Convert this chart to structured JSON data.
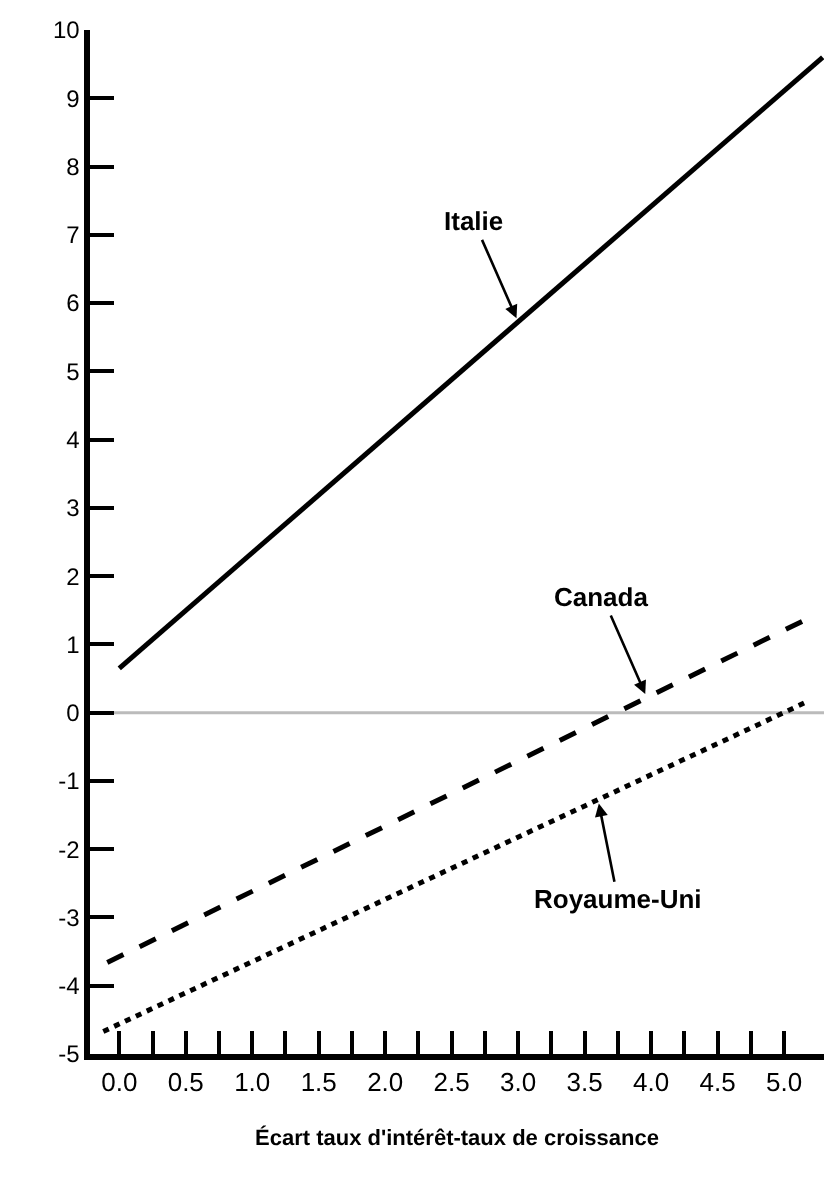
{
  "chart_data": {
    "type": "line",
    "xlabel": "Écart taux d'intérêt-taux de croissance",
    "series": [
      {
        "name": "Italie",
        "color": "#000000",
        "x": [
          0.0,
          5.29
        ],
        "values": [
          0.65,
          9.6
        ],
        "line_style": "solid"
      },
      {
        "name": "Canada",
        "color": "#000000",
        "x": [
          -0.09,
          5.18
        ],
        "values": [
          -3.66,
          1.38
        ],
        "line_style": "dashed"
      },
      {
        "name": "Royaume-Uni",
        "color": "#000000",
        "x": [
          -0.12,
          5.15
        ],
        "values": [
          -4.67,
          0.14
        ],
        "line_style": "dotted"
      }
    ],
    "ref_lines": [
      {
        "axis": "y",
        "value": 0,
        "color": "#bbbbbb"
      }
    ],
    "xlim": [
      -0.22,
      5.3
    ],
    "ylim": [
      -5,
      10
    ],
    "xticks": [
      {
        "value": 0.0,
        "label": "0.0"
      },
      {
        "value": 0.25,
        "label": null
      },
      {
        "value": 0.5,
        "label": "0.5"
      },
      {
        "value": 0.75,
        "label": null
      },
      {
        "value": 1.0,
        "label": "1.0"
      },
      {
        "value": 1.25,
        "label": null
      },
      {
        "value": 1.5,
        "label": "1.5"
      },
      {
        "value": 1.75,
        "label": null
      },
      {
        "value": 2.0,
        "label": "2.0"
      },
      {
        "value": 2.25,
        "label": null
      },
      {
        "value": 2.5,
        "label": "2.5"
      },
      {
        "value": 2.75,
        "label": null
      },
      {
        "value": 3.0,
        "label": "3.0"
      },
      {
        "value": 3.25,
        "label": null
      },
      {
        "value": 3.5,
        "label": "3.5"
      },
      {
        "value": 3.75,
        "label": null
      },
      {
        "value": 4.0,
        "label": "4.0"
      },
      {
        "value": 4.25,
        "label": null
      },
      {
        "value": 4.5,
        "label": "4.5"
      },
      {
        "value": 4.75,
        "label": null
      },
      {
        "value": 5.0,
        "label": "5.0"
      }
    ],
    "yticks": [
      -5,
      -4,
      -3,
      -2,
      -1,
      0,
      1,
      2,
      3,
      4,
      5,
      6,
      7,
      8,
      9,
      10
    ],
    "grid": false,
    "legend": false,
    "marker": "none"
  }
}
